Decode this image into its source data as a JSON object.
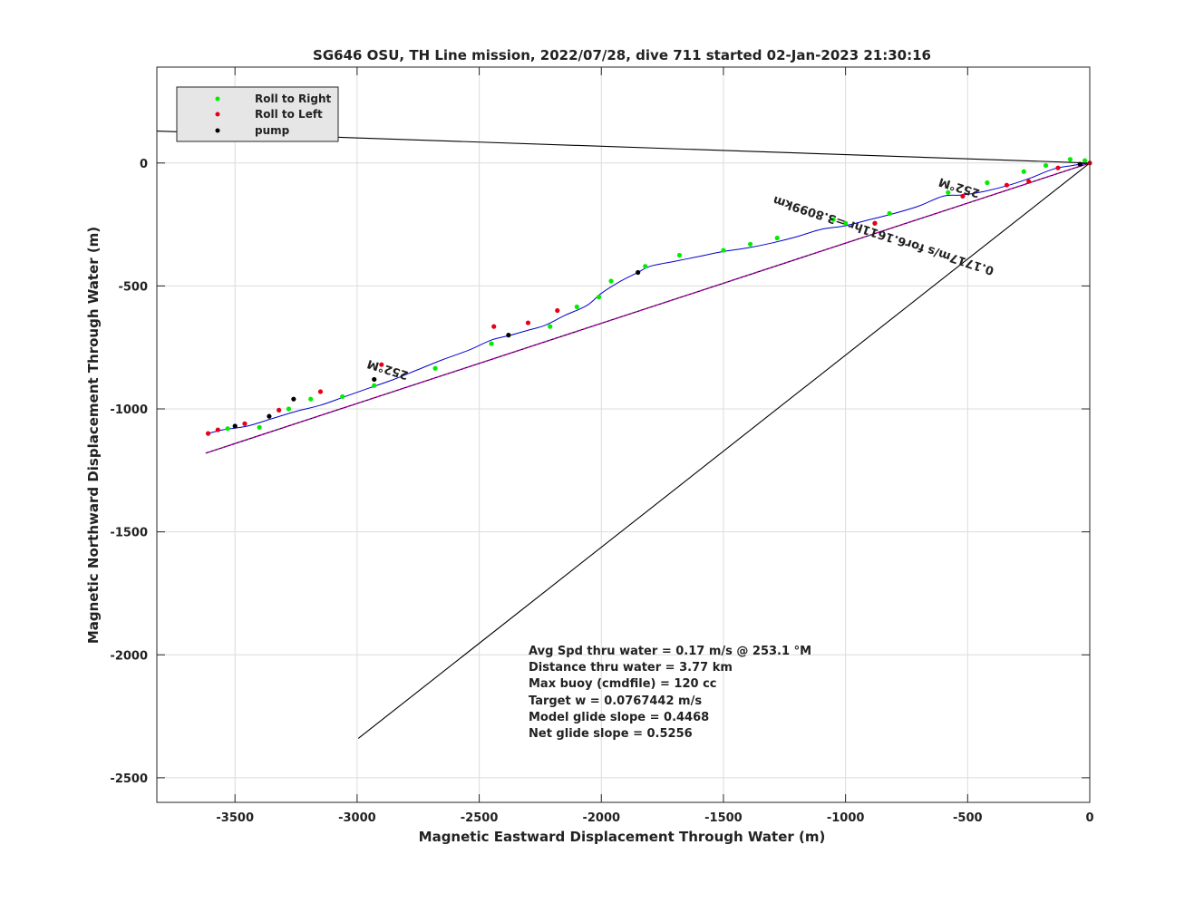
{
  "chart_data": {
    "type": "line",
    "title": "SG646 OSU, TH Line mission, 2022/07/28, dive 711 started 02-Jan-2023 21:30:16",
    "xlabel": "Magnetic Eastward Displacement Through Water (m)",
    "ylabel": "Magnetic Northward Displacement Through Water (m)",
    "xlim": [
      -3820,
      0
    ],
    "ylim": [
      -2600,
      390
    ],
    "xticks": [
      -3500,
      -3000,
      -2500,
      -2000,
      -1500,
      -1000,
      -500,
      0
    ],
    "yticks": [
      0,
      -500,
      -1000,
      -1500,
      -2000,
      -2500
    ],
    "grid": true,
    "legend_position": "top-left",
    "legend": [
      {
        "label": "Roll to Right",
        "color": "#00ee00"
      },
      {
        "label": "Roll to Left",
        "color": "#e8001a"
      },
      {
        "label": "pump",
        "color": "#000000"
      }
    ],
    "colors": {
      "track": "#0000cc",
      "heading_line": "#000000",
      "current_line": "#000000",
      "magenta_line": "#cc00cc"
    },
    "heading_line": [
      [
        0,
        0
      ],
      [
        -3620,
        -1180
      ]
    ],
    "magenta_line": [
      [
        0,
        0
      ],
      [
        -3620,
        -1180
      ]
    ],
    "reference_lines": [
      [
        [
          0,
          0
        ],
        [
          -3820,
          130
        ]
      ],
      [
        [
          0,
          0
        ],
        [
          -2995,
          -2340
        ]
      ]
    ],
    "track": {
      "name": "",
      "x": [
        0,
        -70,
        -150,
        -240,
        -330,
        -430,
        -520,
        -600,
        -700,
        -800,
        -900,
        -1000,
        -1100,
        -1200,
        -1300,
        -1400,
        -1500,
        -1600,
        -1700,
        -1800,
        -1850,
        -1920,
        -2000,
        -2060,
        -2150,
        -2230,
        -2300,
        -2370,
        -2450,
        -2540,
        -2650,
        -2750,
        -2850,
        -2950,
        -3050,
        -3150,
        -3250,
        -3350,
        -3450,
        -3550,
        -3610
      ],
      "y": [
        0,
        -10,
        -25,
        -60,
        -90,
        -115,
        -130,
        -135,
        -175,
        -205,
        -230,
        -255,
        -270,
        -300,
        -325,
        -345,
        -360,
        -380,
        -400,
        -420,
        -445,
        -480,
        -530,
        -580,
        -620,
        -660,
        -680,
        -700,
        -720,
        -760,
        -800,
        -840,
        -880,
        -915,
        -950,
        -985,
        -1010,
        -1040,
        -1070,
        -1085,
        -1100
      ]
    },
    "roll_right_points": [
      [
        -20,
        10
      ],
      [
        -80,
        15
      ],
      [
        -180,
        -10
      ],
      [
        -270,
        -35
      ],
      [
        -420,
        -80
      ],
      [
        -580,
        -120
      ],
      [
        -820,
        -205
      ],
      [
        -880,
        -245
      ],
      [
        -1000,
        -245
      ],
      [
        -1050,
        -230
      ],
      [
        -1280,
        -305
      ],
      [
        -1390,
        -330
      ],
      [
        -1500,
        -355
      ],
      [
        -1680,
        -375
      ],
      [
        -1820,
        -420
      ],
      [
        -1960,
        -480
      ],
      [
        -2010,
        -545
      ],
      [
        -2100,
        -585
      ],
      [
        -2210,
        -665
      ],
      [
        -2450,
        -735
      ],
      [
        -2680,
        -835
      ],
      [
        -2930,
        -905
      ],
      [
        -3060,
        -950
      ],
      [
        -3190,
        -960
      ],
      [
        -3280,
        -1000
      ],
      [
        -3400,
        -1075
      ],
      [
        -3530,
        -1080
      ]
    ],
    "roll_left_points": [
      [
        0,
        0
      ],
      [
        -130,
        -20
      ],
      [
        -250,
        -75
      ],
      [
        -340,
        -90
      ],
      [
        -520,
        -135
      ],
      [
        -880,
        -245
      ],
      [
        -2180,
        -600
      ],
      [
        -2300,
        -650
      ],
      [
        -2440,
        -665
      ],
      [
        -2900,
        -820
      ],
      [
        -3150,
        -930
      ],
      [
        -3320,
        -1005
      ],
      [
        -3460,
        -1060
      ],
      [
        -3570,
        -1085
      ],
      [
        -3610,
        -1100
      ]
    ],
    "pump_points": [
      [
        -40,
        -5
      ],
      [
        -1850,
        -445
      ],
      [
        -2380,
        -700
      ],
      [
        -2930,
        -880
      ],
      [
        -3260,
        -960
      ],
      [
        -3360,
        -1030
      ],
      [
        -3500,
        -1070
      ]
    ],
    "annotations": [
      {
        "text": "252°M",
        "x": -530,
        "y": -85,
        "rotation_deg": 197
      },
      {
        "text": "252°M",
        "x": -2870,
        "y": -825,
        "rotation_deg": 197
      },
      {
        "text": "0.1717m/s for6.1611hr =3.8099km",
        "x": -840,
        "y": -280,
        "rotation_deg": 198
      }
    ],
    "stats": [
      "Avg Spd thru water  =  0.17 m/s @ 253.1 °M",
      "Distance thru water =  3.77 km",
      "Max buoy (cmdfile)  = 120 cc",
      "Target w                    = 0.0767442 m/s",
      "Model glide slope    = 0.4468",
      "Net glide slope         = 0.5256"
    ]
  }
}
